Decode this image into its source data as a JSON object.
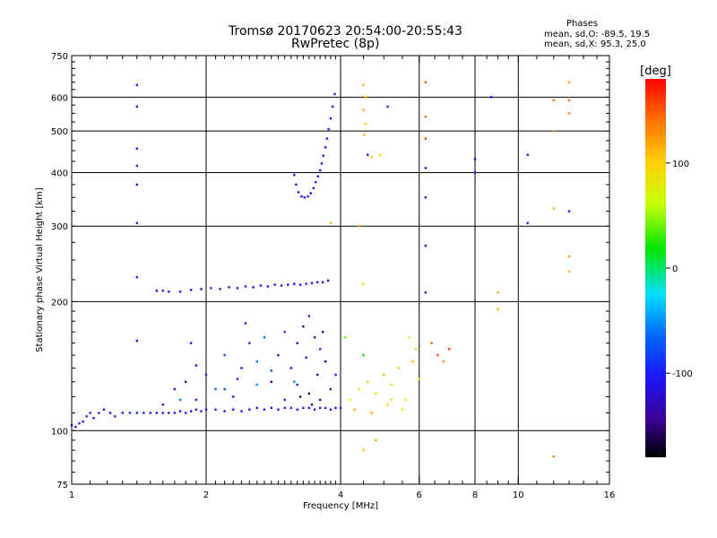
{
  "header": {
    "title_line1": "Tromsø 20170623 20:54:00-20:55:43",
    "title_line2": "RwPretec (8p)",
    "phases_title": "Phases",
    "phases_line1": "mean, sd,O: -89.5, 19.5",
    "phases_line2": "mean, sd,X:  95.3, 25.0"
  },
  "chart_data": {
    "type": "scatter",
    "xlabel": "Frequency [MHz]",
    "ylabel": "Stationary phase Virtual Height [km]",
    "x_scale": "log",
    "y_scale": "log",
    "xlim": [
      1,
      16
    ],
    "ylim": [
      75,
      750
    ],
    "x_ticks": [
      1,
      2,
      4,
      6,
      8,
      10,
      16
    ],
    "x_tick_labels": [
      "1",
      "2",
      "4",
      "6",
      "8",
      "10",
      "16"
    ],
    "y_ticks": [
      75,
      100,
      200,
      300,
      400,
      500,
      600,
      750
    ],
    "y_tick_labels": [
      "75",
      "100",
      "200",
      "300",
      "400",
      "500",
      "600",
      "750"
    ],
    "grid": true,
    "colorbar": {
      "label": "[deg]",
      "range": [
        -180,
        180
      ],
      "ticks": [
        100,
        0,
        -100
      ],
      "tick_labels": [
        "100",
        "0",
        "-100"
      ]
    },
    "series": [
      {
        "points": [
          [
            1.0,
            103,
            -110
          ],
          [
            1.02,
            102,
            -105
          ],
          [
            1.04,
            104,
            -100
          ],
          [
            1.06,
            105,
            -110
          ],
          [
            1.08,
            108,
            -100
          ],
          [
            1.1,
            110,
            -105
          ],
          [
            1.12,
            107,
            -110
          ],
          [
            1.15,
            110,
            -100
          ],
          [
            1.18,
            112,
            -105
          ],
          [
            1.22,
            110,
            -110
          ],
          [
            1.25,
            108,
            -100
          ],
          [
            1.3,
            110,
            -110
          ],
          [
            1.35,
            110,
            -105
          ],
          [
            1.4,
            110,
            -100
          ],
          [
            1.45,
            110,
            -110
          ],
          [
            1.5,
            110,
            -105
          ],
          [
            1.55,
            110,
            -100
          ],
          [
            1.6,
            110,
            -110
          ],
          [
            1.65,
            110,
            -105
          ],
          [
            1.7,
            110,
            -100
          ],
          [
            1.75,
            111,
            -110
          ],
          [
            1.8,
            110,
            -105
          ],
          [
            1.85,
            111,
            -100
          ],
          [
            1.9,
            112,
            -110
          ],
          [
            1.95,
            111,
            -105
          ],
          [
            2.0,
            112,
            -100
          ],
          [
            2.1,
            112,
            -110
          ],
          [
            2.2,
            111,
            -105
          ],
          [
            2.3,
            112,
            -100
          ],
          [
            2.4,
            111,
            -110
          ],
          [
            2.5,
            112,
            -105
          ],
          [
            2.6,
            113,
            -100
          ],
          [
            2.7,
            112,
            -110
          ],
          [
            2.8,
            113,
            -105
          ],
          [
            2.9,
            112,
            -100
          ],
          [
            3.0,
            113,
            -110
          ],
          [
            3.1,
            113,
            -105
          ],
          [
            3.2,
            112,
            -100
          ],
          [
            3.3,
            113,
            -110
          ],
          [
            3.4,
            113,
            -105
          ],
          [
            3.5,
            112,
            -100
          ],
          [
            3.6,
            113,
            -110
          ],
          [
            3.7,
            113,
            -105
          ],
          [
            3.8,
            112,
            -100
          ],
          [
            3.9,
            113,
            -110
          ],
          [
            4.0,
            113,
            -105
          ]
        ]
      },
      {
        "points": [
          [
            1.55,
            212,
            -105
          ],
          [
            1.6,
            212,
            -100
          ],
          [
            1.65,
            211,
            -110
          ],
          [
            1.75,
            211,
            -105
          ],
          [
            1.85,
            213,
            -100
          ],
          [
            1.95,
            214,
            -110
          ],
          [
            2.05,
            215,
            -105
          ],
          [
            2.15,
            214,
            -100
          ],
          [
            2.25,
            216,
            -110
          ],
          [
            2.35,
            215,
            -105
          ],
          [
            2.45,
            217,
            -100
          ],
          [
            2.55,
            216,
            -110
          ],
          [
            2.65,
            218,
            -105
          ],
          [
            2.75,
            217,
            -100
          ],
          [
            2.85,
            219,
            -110
          ],
          [
            2.95,
            218,
            -105
          ],
          [
            3.05,
            219,
            -100
          ],
          [
            3.15,
            220,
            -110
          ],
          [
            3.25,
            219,
            -105
          ],
          [
            3.35,
            220,
            -100
          ],
          [
            3.45,
            221,
            -110
          ],
          [
            3.55,
            222,
            -105
          ],
          [
            3.65,
            222,
            -100
          ],
          [
            3.75,
            224,
            -110
          ]
        ]
      },
      {
        "points": [
          [
            3.15,
            395,
            -110
          ],
          [
            3.18,
            375,
            -105
          ],
          [
            3.22,
            360,
            -100
          ],
          [
            3.27,
            352,
            -110
          ],
          [
            3.32,
            350,
            -105
          ],
          [
            3.38,
            352,
            -100
          ],
          [
            3.43,
            358,
            -110
          ],
          [
            3.48,
            368,
            -105
          ],
          [
            3.52,
            380,
            -100
          ],
          [
            3.56,
            392,
            -110
          ],
          [
            3.6,
            405,
            -105
          ],
          [
            3.63,
            420,
            -100
          ],
          [
            3.66,
            438,
            -110
          ],
          [
            3.7,
            458,
            -105
          ],
          [
            3.73,
            480,
            -100
          ],
          [
            3.76,
            505,
            -110
          ],
          [
            3.8,
            535,
            -105
          ],
          [
            3.84,
            570,
            -100
          ],
          [
            3.88,
            610,
            -110
          ]
        ]
      },
      {
        "points": [
          [
            1.4,
            640,
            -100
          ],
          [
            1.4,
            570,
            -110
          ],
          [
            1.4,
            455,
            -105
          ],
          [
            1.4,
            415,
            -100
          ],
          [
            1.4,
            375,
            -110
          ],
          [
            1.4,
            305,
            -105
          ],
          [
            1.4,
            228,
            -100
          ],
          [
            1.4,
            162,
            -110
          ],
          [
            6.2,
            410,
            -100
          ],
          [
            6.2,
            350,
            -110
          ],
          [
            6.2,
            270,
            -105
          ],
          [
            6.2,
            210,
            -100
          ],
          [
            8.0,
            430,
            -110
          ],
          [
            8.0,
            400,
            -105
          ],
          [
            10.5,
            440,
            -100
          ],
          [
            10.5,
            305,
            -110
          ],
          [
            13.0,
            325,
            -105
          ],
          [
            8.7,
            600,
            -100
          ],
          [
            4.6,
            440,
            -110
          ],
          [
            5.1,
            570,
            -105
          ]
        ]
      },
      {
        "points": [
          [
            4.5,
            640,
            110
          ],
          [
            4.55,
            600,
            105
          ],
          [
            4.5,
            560,
            115
          ],
          [
            4.55,
            520,
            100
          ],
          [
            4.52,
            490,
            110
          ],
          [
            4.7,
            435,
            105
          ],
          [
            4.9,
            440,
            100
          ],
          [
            4.4,
            300,
            115
          ],
          [
            4.5,
            220,
            70
          ],
          [
            6.2,
            650,
            150
          ],
          [
            6.2,
            540,
            140
          ],
          [
            6.2,
            480,
            155
          ],
          [
            9.0,
            210,
            115
          ],
          [
            9.0,
            192,
            110
          ],
          [
            12.0,
            590,
            140
          ],
          [
            12.0,
            500,
            120
          ],
          [
            12.0,
            330,
            110
          ],
          [
            13.0,
            650,
            120
          ],
          [
            13.0,
            590,
            145
          ],
          [
            13.0,
            550,
            130
          ],
          [
            13.0,
            255,
            120
          ],
          [
            13.0,
            235,
            110
          ],
          [
            12.0,
            87,
            125
          ],
          [
            4.5,
            90,
            105
          ],
          [
            4.8,
            95,
            120
          ],
          [
            3.8,
            305,
            110
          ]
        ]
      },
      {
        "points": [
          [
            4.2,
            118,
            70
          ],
          [
            4.4,
            125,
            85
          ],
          [
            4.6,
            130,
            100
          ],
          [
            4.8,
            122,
            95
          ],
          [
            5.0,
            135,
            110
          ],
          [
            5.2,
            128,
            80
          ],
          [
            5.4,
            140,
            105
          ],
          [
            5.6,
            118,
            60
          ],
          [
            5.8,
            145,
            110
          ],
          [
            5.9,
            155,
            100
          ],
          [
            6.0,
            132,
            90
          ],
          [
            4.3,
            112,
            115
          ],
          [
            4.7,
            110,
            120
          ],
          [
            5.1,
            115,
            100
          ],
          [
            5.5,
            112,
            95
          ],
          [
            6.4,
            160,
            140
          ],
          [
            6.6,
            150,
            150
          ],
          [
            6.8,
            145,
            130
          ],
          [
            7.0,
            155,
            160
          ],
          [
            4.1,
            165,
            40
          ],
          [
            4.5,
            150,
            20
          ],
          [
            5.7,
            165,
            75
          ],
          [
            5.2,
            118,
            85
          ]
        ]
      },
      {
        "points": [
          [
            1.6,
            115,
            -140
          ],
          [
            1.7,
            125,
            -120
          ],
          [
            1.8,
            130,
            -130
          ],
          [
            1.9,
            118,
            -110
          ],
          [
            2.0,
            135,
            -90
          ],
          [
            2.1,
            125,
            -70
          ],
          [
            2.2,
            150,
            -80
          ],
          [
            2.3,
            120,
            -100
          ],
          [
            2.4,
            140,
            -130
          ],
          [
            2.5,
            160,
            -90
          ],
          [
            2.6,
            145,
            -60
          ],
          [
            2.7,
            165,
            -70
          ],
          [
            2.8,
            130,
            -140
          ],
          [
            2.9,
            150,
            -120
          ],
          [
            3.0,
            170,
            -80
          ],
          [
            3.1,
            140,
            -100
          ],
          [
            3.2,
            160,
            -130
          ],
          [
            3.3,
            175,
            -150
          ],
          [
            3.4,
            185,
            -120
          ],
          [
            3.5,
            165,
            -140
          ],
          [
            3.6,
            155,
            -90
          ],
          [
            3.7,
            145,
            -150
          ],
          [
            3.8,
            125,
            -130
          ],
          [
            3.9,
            135,
            -100
          ],
          [
            2.2,
            125,
            -70
          ],
          [
            2.6,
            128,
            -50
          ],
          [
            3.0,
            118,
            -120
          ],
          [
            3.4,
            122,
            -160
          ],
          [
            3.6,
            118,
            -140
          ],
          [
            3.2,
            128,
            -90
          ],
          [
            2.8,
            138,
            -75
          ],
          [
            1.9,
            142,
            -100
          ],
          [
            1.75,
            118,
            -60
          ],
          [
            2.35,
            132,
            -95
          ],
          [
            3.35,
            148,
            -110
          ],
          [
            3.55,
            135,
            -150
          ],
          [
            3.25,
            120,
            -160
          ],
          [
            3.45,
            115,
            -150
          ],
          [
            1.85,
            160,
            -120
          ],
          [
            2.45,
            178,
            -110
          ],
          [
            3.65,
            170,
            -145
          ],
          [
            3.15,
            130,
            -55
          ]
        ]
      }
    ]
  }
}
